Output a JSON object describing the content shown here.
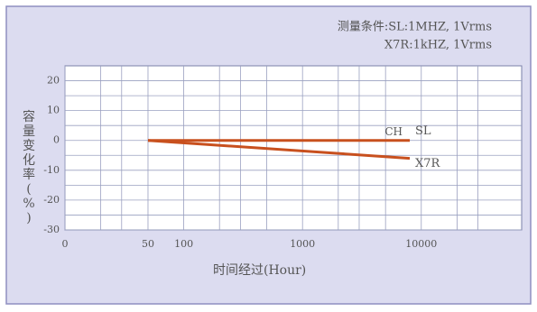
{
  "chart_data": {
    "type": "line",
    "annotations": [
      "测量条件:SL:1MHZ, 1Vrms",
      "X7R:1kHZ, 1Vrms",
      "CH"
    ],
    "y_label": "容量变化率(%)",
    "x_label": "时间经过(Hour)",
    "x": [
      50,
      8000
    ],
    "series": [
      {
        "name": "SL",
        "color": "#c8501e",
        "values": [
          0,
          0
        ]
      },
      {
        "name": "X7R",
        "color": "#c8501e",
        "values": [
          0,
          -6
        ]
      }
    ],
    "xscale": "log",
    "xlim": [
      10,
      70000
    ],
    "xticks": [
      {
        "value": 10,
        "label": "0"
      },
      50,
      100,
      1000,
      10000
    ],
    "x_minor_grid": [
      20,
      30,
      200,
      300,
      500,
      2000,
      3000,
      5000,
      20000,
      30000
    ],
    "ylim": [
      -30,
      25
    ],
    "yticks": [
      -30,
      -20,
      -10,
      0,
      10,
      20
    ],
    "y_minor_grid": [
      -25,
      -15,
      -5,
      5,
      15
    ],
    "grid": true
  }
}
